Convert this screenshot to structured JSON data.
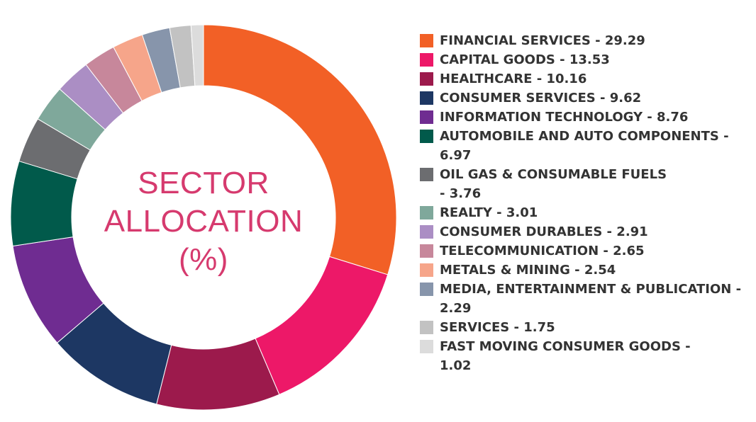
{
  "chart_data": {
    "type": "pie",
    "title": "SECTOR ALLOCATION (%)",
    "title_lines": [
      "SECTOR",
      "ALLOCATION",
      "(%)"
    ],
    "legend_placement": "right",
    "series": [
      {
        "label": "FINANCIAL SERVICES",
        "value": 29.29,
        "color": "#f26026",
        "text": "FINANCIAL SERVICES - 29.29",
        "lines": [
          "FINANCIAL SERVICES - 29.29"
        ]
      },
      {
        "label": "CAPITAL GOODS",
        "value": 13.53,
        "color": "#ed1868",
        "text": "CAPITAL GOODS - 13.53",
        "lines": [
          "CAPITAL GOODS - 13.53"
        ]
      },
      {
        "label": "HEALTHCARE",
        "value": 10.16,
        "color": "#9c1a4c",
        "text": "HEALTHCARE - 10.16",
        "lines": [
          "HEALTHCARE - 10.16"
        ]
      },
      {
        "label": "CONSUMER SERVICES",
        "value": 9.62,
        "color": "#1d3763",
        "text": "CONSUMER SERVICES - 9.62",
        "lines": [
          "CONSUMER SERVICES - 9.62"
        ]
      },
      {
        "label": "INFORMATION TECHNOLOGY",
        "value": 8.76,
        "color": "#6f2c91",
        "text": "INFORMATION TECHNOLOGY - 8.76",
        "lines": [
          "INFORMATION TECHNOLOGY - 8.76"
        ]
      },
      {
        "label": "AUTOMOBILE AND AUTO COMPONENTS",
        "value": 6.97,
        "color": "#015a4b",
        "text": "AUTOMOBILE AND AUTO COMPONENTS - 6.97",
        "lines": [
          "AUTOMOBILE AND AUTO COMPONENTS -",
          "6.97"
        ]
      },
      {
        "label": "OIL GAS & CONSUMABLE FUELS",
        "value": 3.76,
        "color": "#6c6d70",
        "text": "OIL GAS & CONSUMABLE FUELS - 3.76",
        "lines": [
          "OIL GAS & CONSUMABLE FUELS",
          "- 3.76"
        ]
      },
      {
        "label": "REALTY",
        "value": 3.01,
        "color": "#7fa89b",
        "text": "REALTY - 3.01",
        "lines": [
          "REALTY - 3.01"
        ]
      },
      {
        "label": "CONSUMER DURABLES",
        "value": 2.91,
        "color": "#ab8ec4",
        "text": "CONSUMER DURABLES - 2.91",
        "lines": [
          "CONSUMER DURABLES - 2.91"
        ]
      },
      {
        "label": "TELECOMMUNICATION",
        "value": 2.65,
        "color": "#c7879b",
        "text": "TELECOMMUNICATION - 2.65",
        "lines": [
          "TELECOMMUNICATION - 2.65"
        ]
      },
      {
        "label": "METALS & MINING",
        "value": 2.54,
        "color": "#f6a58a",
        "text": "METALS & MINING - 2.54",
        "lines": [
          "METALS & MINING - 2.54"
        ]
      },
      {
        "label": "MEDIA, ENTERTAINMENT & PUBLICATION",
        "value": 2.29,
        "color": "#8795ab",
        "text": "MEDIA, ENTERTAINMENT & PUBLICATION - 2.29",
        "lines": [
          "MEDIA, ENTERTAINMENT & PUBLICATION -",
          "2.29"
        ]
      },
      {
        "label": "SERVICES",
        "value": 1.75,
        "color": "#c2c2c2",
        "text": "SERVICES - 1.75",
        "lines": [
          "SERVICES - 1.75"
        ]
      },
      {
        "label": "FAST MOVING CONSUMER GOODS",
        "value": 1.02,
        "color": "#dcdcdc",
        "text": "FAST MOVING CONSUMER GOODS - 1.02",
        "lines": [
          "FAST MOVING CONSUMER GOODS -",
          "1.02"
        ]
      }
    ]
  }
}
